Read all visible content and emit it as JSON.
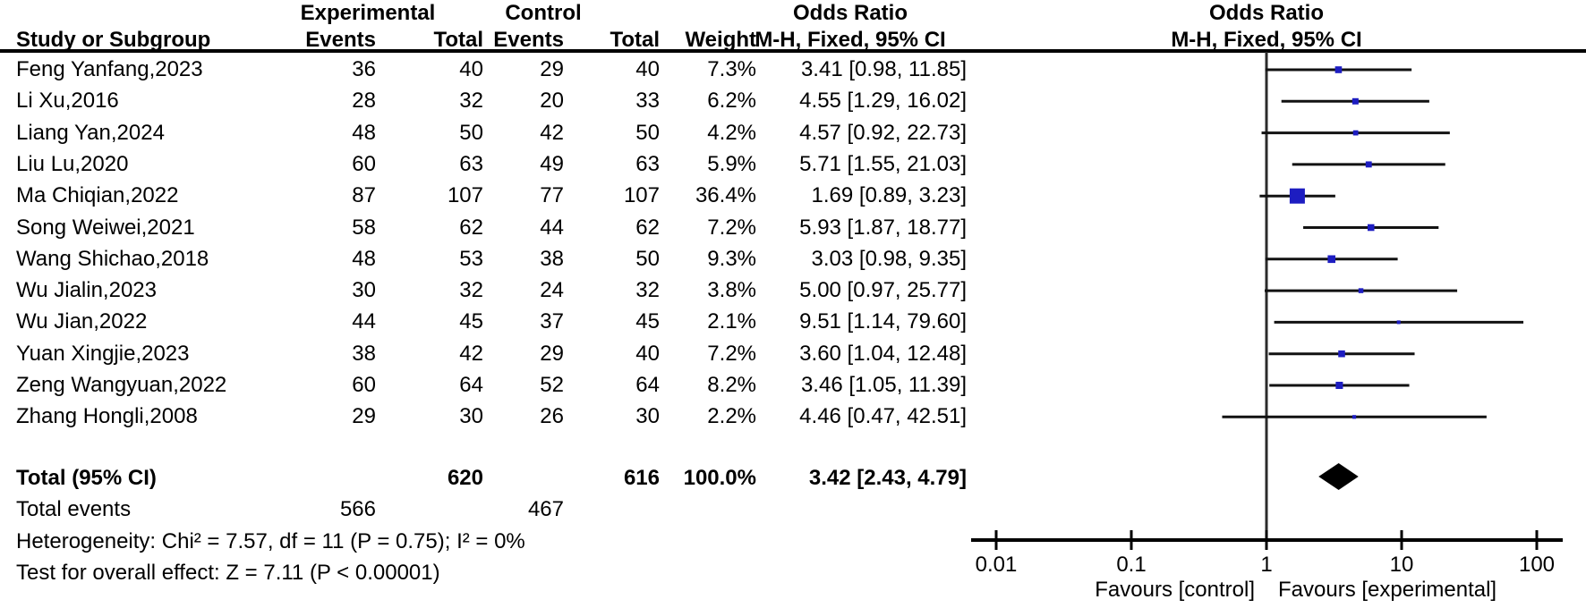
{
  "header": {
    "study_col": "Study or Subgroup",
    "group_experimental": "Experimental",
    "group_control": "Control",
    "events_exp": "Events",
    "total_exp": "Total",
    "events_ctrl": "Events",
    "total_ctrl": "Total",
    "weight": "Weight",
    "or_left_title": "Odds Ratio",
    "or_left_sub": "M-H, Fixed, 95% CI",
    "or_right_title": "Odds Ratio",
    "or_right_sub": "M-H, Fixed, 95% CI"
  },
  "chart_data": {
    "type": "forest",
    "x_scale": "log10",
    "axis_range": [
      0.01,
      100
    ],
    "axis_ticks": [
      "0.01",
      "0.1",
      "1",
      "10",
      "100"
    ],
    "null_line": 1,
    "favours_left": "Favours [control]",
    "favours_right": "Favours [experimental]",
    "colors": {
      "square": "#1d1dc1",
      "ci_line": "#121212",
      "diamond": "#000000",
      "axis": "#000000",
      "null_line": "#2b2b2b"
    },
    "studies": [
      {
        "name": "Feng Yanfang,2023",
        "events_exp": 36,
        "total_exp": 40,
        "events_ctrl": 29,
        "total_ctrl": 40,
        "weight_pct": 7.3,
        "weight": "7.3%",
        "or": 3.41,
        "ci_low": 0.98,
        "ci_high": 11.85,
        "or_text": "3.41 [0.98, 11.85]"
      },
      {
        "name": "Li Xu,2016",
        "events_exp": 28,
        "total_exp": 32,
        "events_ctrl": 20,
        "total_ctrl": 33,
        "weight_pct": 6.2,
        "weight": "6.2%",
        "or": 4.55,
        "ci_low": 1.29,
        "ci_high": 16.02,
        "or_text": "4.55 [1.29, 16.02]"
      },
      {
        "name": "Liang Yan,2024",
        "events_exp": 48,
        "total_exp": 50,
        "events_ctrl": 42,
        "total_ctrl": 50,
        "weight_pct": 4.2,
        "weight": "4.2%",
        "or": 4.57,
        "ci_low": 0.92,
        "ci_high": 22.73,
        "or_text": "4.57 [0.92, 22.73]"
      },
      {
        "name": "Liu Lu,2020",
        "events_exp": 60,
        "total_exp": 63,
        "events_ctrl": 49,
        "total_ctrl": 63,
        "weight_pct": 5.9,
        "weight": "5.9%",
        "or": 5.71,
        "ci_low": 1.55,
        "ci_high": 21.03,
        "or_text": "5.71 [1.55, 21.03]"
      },
      {
        "name": "Ma Chiqian,2022",
        "events_exp": 87,
        "total_exp": 107,
        "events_ctrl": 77,
        "total_ctrl": 107,
        "weight_pct": 36.4,
        "weight": "36.4%",
        "or": 1.69,
        "ci_low": 0.89,
        "ci_high": 3.23,
        "or_text": "1.69 [0.89, 3.23]"
      },
      {
        "name": "Song Weiwei,2021",
        "events_exp": 58,
        "total_exp": 62,
        "events_ctrl": 44,
        "total_ctrl": 62,
        "weight_pct": 7.2,
        "weight": "7.2%",
        "or": 5.93,
        "ci_low": 1.87,
        "ci_high": 18.77,
        "or_text": "5.93 [1.87, 18.77]"
      },
      {
        "name": "Wang Shichao,2018",
        "events_exp": 48,
        "total_exp": 53,
        "events_ctrl": 38,
        "total_ctrl": 50,
        "weight_pct": 9.3,
        "weight": "9.3%",
        "or": 3.03,
        "ci_low": 0.98,
        "ci_high": 9.35,
        "or_text": "3.03 [0.98, 9.35]"
      },
      {
        "name": "Wu Jialin,2023",
        "events_exp": 30,
        "total_exp": 32,
        "events_ctrl": 24,
        "total_ctrl": 32,
        "weight_pct": 3.8,
        "weight": "3.8%",
        "or": 5.0,
        "ci_low": 0.97,
        "ci_high": 25.77,
        "or_text": "5.00 [0.97, 25.77]"
      },
      {
        "name": "Wu Jian,2022",
        "events_exp": 44,
        "total_exp": 45,
        "events_ctrl": 37,
        "total_ctrl": 45,
        "weight_pct": 2.1,
        "weight": "2.1%",
        "or": 9.51,
        "ci_low": 1.14,
        "ci_high": 79.6,
        "or_text": "9.51 [1.14, 79.60]"
      },
      {
        "name": "Yuan Xingjie,2023",
        "events_exp": 38,
        "total_exp": 42,
        "events_ctrl": 29,
        "total_ctrl": 40,
        "weight_pct": 7.2,
        "weight": "7.2%",
        "or": 3.6,
        "ci_low": 1.04,
        "ci_high": 12.48,
        "or_text": "3.60 [1.04, 12.48]"
      },
      {
        "name": "Zeng Wangyuan,2022",
        "events_exp": 60,
        "total_exp": 64,
        "events_ctrl": 52,
        "total_ctrl": 64,
        "weight_pct": 8.2,
        "weight": "8.2%",
        "or": 3.46,
        "ci_low": 1.05,
        "ci_high": 11.39,
        "or_text": "3.46 [1.05, 11.39]"
      },
      {
        "name": "Zhang Hongli,2008",
        "events_exp": 29,
        "total_exp": 30,
        "events_ctrl": 26,
        "total_ctrl": 30,
        "weight_pct": 2.2,
        "weight": "2.2%",
        "or": 4.46,
        "ci_low": 0.47,
        "ci_high": 42.51,
        "or_text": "4.46 [0.47, 42.51]"
      }
    ],
    "total": {
      "label": "Total (95% CI)",
      "total_exp": "620",
      "total_ctrl": "616",
      "weight": "100.0%",
      "or": 3.42,
      "ci_low": 2.43,
      "ci_high": 4.79,
      "or_text": "3.42 [2.43, 4.79]"
    },
    "total_events": {
      "label": "Total events",
      "exp": "566",
      "ctrl": "467"
    },
    "heterogeneity": "Heterogeneity: Chi² = 7.57, df = 11 (P = 0.75); I² = 0%",
    "overall_effect": "Test for overall effect: Z = 7.11 (P < 0.00001)"
  }
}
